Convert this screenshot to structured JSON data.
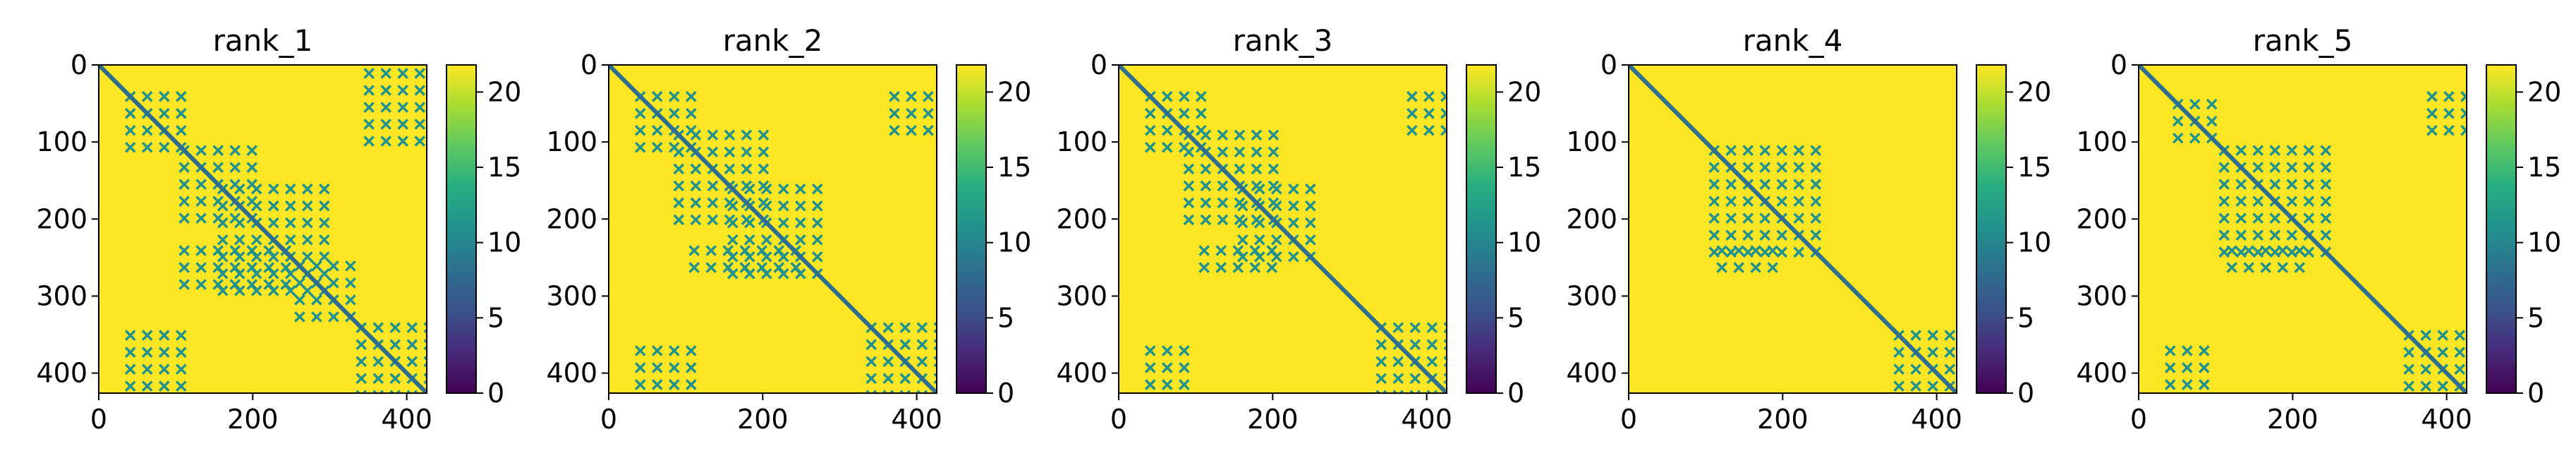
{
  "figure": {
    "background": "#ffffff"
  },
  "chart_data": [
    {
      "type": "heatmap",
      "title": "rank_1",
      "xlabel": "",
      "ylabel": "",
      "xlim": [
        0,
        426
      ],
      "ylim": [
        426,
        0
      ],
      "xticks": [
        0,
        200,
        400
      ],
      "yticks": [
        0,
        100,
        200,
        300,
        400
      ],
      "colorbar": {
        "range": [
          0,
          21.8
        ],
        "ticks": [
          0,
          5,
          10,
          15,
          20
        ],
        "colormap": "viridis"
      },
      "background_value": 21.8,
      "diagonal_value": 8,
      "off_diagonal_blocks": [
        {
          "x0": 30,
          "x1": 100,
          "y0": 30,
          "y1": 100
        },
        {
          "x0": 100,
          "x1": 200,
          "y0": 100,
          "y1": 200
        },
        {
          "x0": 150,
          "x1": 300,
          "y0": 150,
          "y1": 300
        },
        {
          "x0": 250,
          "x1": 330,
          "y0": 250,
          "y1": 330
        },
        {
          "x0": 330,
          "x1": 426,
          "y0": 330,
          "y1": 426
        },
        {
          "x0": 30,
          "x1": 100,
          "y0": 340,
          "y1": 426
        },
        {
          "x0": 340,
          "x1": 426,
          "y0": 0,
          "y1": 90
        },
        {
          "x0": 100,
          "x1": 250,
          "y0": 230,
          "y1": 280
        }
      ]
    },
    {
      "type": "heatmap",
      "title": "rank_2",
      "xlabel": "",
      "ylabel": "",
      "xlim": [
        0,
        426
      ],
      "ylim": [
        426,
        0
      ],
      "xticks": [
        0,
        200,
        400
      ],
      "yticks": [
        0,
        100,
        200,
        300,
        400
      ],
      "colorbar": {
        "range": [
          0,
          21.8
        ],
        "ticks": [
          0,
          5,
          10,
          15,
          20
        ],
        "colormap": "viridis"
      },
      "background_value": 21.8,
      "diagonal_value": 8,
      "off_diagonal_blocks": [
        {
          "x0": 30,
          "x1": 100,
          "y0": 30,
          "y1": 100
        },
        {
          "x0": 80,
          "x1": 200,
          "y0": 80,
          "y1": 200
        },
        {
          "x0": 150,
          "x1": 280,
          "y0": 150,
          "y1": 280
        },
        {
          "x0": 330,
          "x1": 426,
          "y0": 330,
          "y1": 426
        },
        {
          "x0": 30,
          "x1": 100,
          "y0": 360,
          "y1": 426
        },
        {
          "x0": 360,
          "x1": 426,
          "y0": 30,
          "y1": 90
        },
        {
          "x0": 100,
          "x1": 250,
          "y0": 230,
          "y1": 270
        }
      ]
    },
    {
      "type": "heatmap",
      "title": "rank_3",
      "xlabel": "",
      "ylabel": "",
      "xlim": [
        0,
        426
      ],
      "ylim": [
        426,
        0
      ],
      "xticks": [
        0,
        200,
        400
      ],
      "yticks": [
        0,
        100,
        200,
        300,
        400
      ],
      "colorbar": {
        "range": [
          0,
          21.8
        ],
        "ticks": [
          0,
          5,
          10,
          15,
          20
        ],
        "colormap": "viridis"
      },
      "background_value": 21.8,
      "diagonal_value": 8,
      "off_diagonal_blocks": [
        {
          "x0": 30,
          "x1": 100,
          "y0": 30,
          "y1": 100
        },
        {
          "x0": 80,
          "x1": 200,
          "y0": 80,
          "y1": 200
        },
        {
          "x0": 150,
          "x1": 250,
          "y0": 150,
          "y1": 250
        },
        {
          "x0": 330,
          "x1": 426,
          "y0": 330,
          "y1": 426
        },
        {
          "x0": 30,
          "x1": 90,
          "y0": 360,
          "y1": 426
        },
        {
          "x0": 370,
          "x1": 426,
          "y0": 30,
          "y1": 90
        },
        {
          "x0": 100,
          "x1": 200,
          "y0": 230,
          "y1": 260
        }
      ]
    },
    {
      "type": "heatmap",
      "title": "rank_4",
      "xlabel": "",
      "ylabel": "",
      "xlim": [
        0,
        426
      ],
      "ylim": [
        426,
        0
      ],
      "xticks": [
        0,
        200,
        400
      ],
      "yticks": [
        0,
        100,
        200,
        300,
        400
      ],
      "colorbar": {
        "range": [
          0,
          21.8
        ],
        "ticks": [
          0,
          5,
          10,
          15,
          20
        ],
        "colormap": "viridis"
      },
      "background_value": 21.8,
      "diagonal_value": 8,
      "off_diagonal_blocks": [
        {
          "x0": 100,
          "x1": 240,
          "y0": 100,
          "y1": 240
        },
        {
          "x0": 340,
          "x1": 426,
          "y0": 340,
          "y1": 426
        },
        {
          "x0": 110,
          "x1": 190,
          "y0": 230,
          "y1": 260
        }
      ]
    },
    {
      "type": "heatmap",
      "title": "rank_5",
      "xlabel": "",
      "ylabel": "",
      "xlim": [
        0,
        426
      ],
      "ylim": [
        426,
        0
      ],
      "xticks": [
        0,
        200,
        400
      ],
      "yticks": [
        0,
        100,
        200,
        300,
        400
      ],
      "colorbar": {
        "range": [
          0,
          21.8
        ],
        "ticks": [
          0,
          5,
          10,
          15,
          20
        ],
        "colormap": "viridis"
      },
      "background_value": 21.8,
      "diagonal_value": 8,
      "off_diagonal_blocks": [
        {
          "x0": 40,
          "x1": 90,
          "y0": 40,
          "y1": 90
        },
        {
          "x0": 100,
          "x1": 240,
          "y0": 100,
          "y1": 240
        },
        {
          "x0": 340,
          "x1": 426,
          "y0": 340,
          "y1": 426
        },
        {
          "x0": 30,
          "x1": 80,
          "y0": 360,
          "y1": 426
        },
        {
          "x0": 370,
          "x1": 426,
          "y0": 30,
          "y1": 90
        },
        {
          "x0": 110,
          "x1": 200,
          "y0": 230,
          "y1": 260
        }
      ]
    }
  ]
}
